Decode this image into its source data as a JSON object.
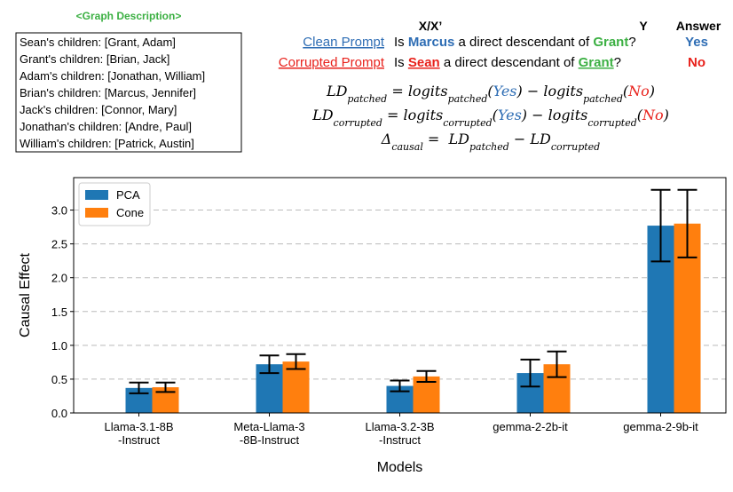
{
  "graph_description": {
    "title": "<Graph Description>",
    "lines": [
      "Sean's children: [Grant, Adam]",
      "Grant's children: [Brian, Jack]",
      "Adam's children: [Jonathan, William]",
      "Brian's children: [Marcus, Jennifer]",
      "Jack's children: [Connor, Mary]",
      "Jonathan's children: [Andre, Paul]",
      "William's children: [Patrick, Austin]"
    ]
  },
  "columns": {
    "x": "X/X’",
    "y": "Y",
    "answer": "Answer"
  },
  "prompts": [
    {
      "label": "Clean Prompt",
      "color": "#2e6db4",
      "parts": [
        {
          "t": "Is "
        },
        {
          "t": "Marcus",
          "color": "#2e6db4",
          "bold": true
        },
        {
          "t": " a direct descendant of "
        },
        {
          "t": "Grant",
          "color": "#3cb043",
          "bold": true
        },
        {
          "t": "?"
        }
      ],
      "answer": "Yes"
    },
    {
      "label": "Corrupted Prompt",
      "color": "#e8211b",
      "parts": [
        {
          "t": "Is "
        },
        {
          "t": "Sean",
          "color": "#e8211b",
          "bold": true,
          "underline": true
        },
        {
          "t": " a direct descendant of "
        },
        {
          "t": "Grant",
          "color": "#3cb043",
          "bold": true,
          "underline": true
        },
        {
          "t": "?"
        }
      ],
      "answer": "No"
    }
  ],
  "formulas": [
    [
      {
        "t": "LD"
      },
      {
        "t": "patched",
        "sub": true
      },
      {
        "t": " = logits"
      },
      {
        "t": "patched",
        "sub": true
      },
      {
        "t": "("
      },
      {
        "t": "Yes",
        "color": "#2e6db4"
      },
      {
        "t": ") − logits"
      },
      {
        "t": "patched",
        "sub": true
      },
      {
        "t": "("
      },
      {
        "t": "No",
        "color": "#e8211b"
      },
      {
        "t": ")"
      }
    ],
    [
      {
        "t": "LD"
      },
      {
        "t": "corrupted",
        "sub": true
      },
      {
        "t": " = logits"
      },
      {
        "t": "corrupted",
        "sub": true
      },
      {
        "t": "("
      },
      {
        "t": "Yes",
        "color": "#2e6db4"
      },
      {
        "t": ") − logits"
      },
      {
        "t": "corrupted",
        "sub": true
      },
      {
        "t": "("
      },
      {
        "t": "No",
        "color": "#e8211b"
      },
      {
        "t": ")"
      }
    ],
    [
      {
        "t": "Δ"
      },
      {
        "t": "causal",
        "sub": true
      },
      {
        "t": " =  LD"
      },
      {
        "t": "patched",
        "sub": true
      },
      {
        "t": " − LD"
      },
      {
        "t": "corrupted",
        "sub": true
      }
    ]
  ],
  "chart_data": {
    "type": "bar",
    "xlabel": "Models",
    "ylabel": "Causal Effect",
    "categories": [
      "Llama-3.1-8B\n-Instruct",
      "Meta-Llama-3\n-8B-Instruct",
      "Llama-3.2-3B\n-Instruct",
      "gemma-2-2b-it",
      "gemma-2-9b-it"
    ],
    "series": [
      {
        "name": "PCA",
        "color": "#1f77b4",
        "values": [
          0.37,
          0.72,
          0.4,
          0.59,
          2.77
        ],
        "errors": [
          0.08,
          0.13,
          0.08,
          0.2,
          0.53
        ]
      },
      {
        "name": "Cone",
        "color": "#ff7f0e",
        "values": [
          0.38,
          0.76,
          0.54,
          0.72,
          2.8
        ],
        "errors": [
          0.07,
          0.11,
          0.08,
          0.19,
          0.5
        ]
      }
    ],
    "ylim": [
      0,
      3.48
    ],
    "yticks": [
      {
        "value": 0,
        "label": "0.0"
      },
      {
        "value": 0.5,
        "label": "0.5"
      },
      {
        "value": 1,
        "label": "1.0"
      },
      {
        "value": 1.5,
        "label": "1.5"
      },
      {
        "value": 2,
        "label": "2.0"
      },
      {
        "value": 2.5,
        "label": "2.5"
      },
      {
        "value": 3,
        "label": "3.0"
      }
    ],
    "grid": true,
    "legend": "upper left"
  }
}
